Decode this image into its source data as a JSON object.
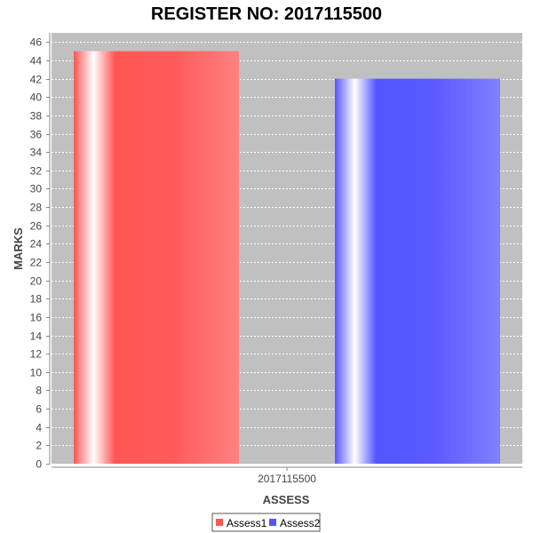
{
  "chart_data": {
    "type": "bar",
    "title": "REGISTER NO: 2017115500",
    "xlabel": "ASSESS",
    "ylabel": "MARKS",
    "categories": [
      "2017115500"
    ],
    "series": [
      {
        "name": "Assess1",
        "values": [
          45
        ],
        "color": "#ff5555"
      },
      {
        "name": "Assess2",
        "values": [
          42
        ],
        "color": "#5555ff"
      }
    ],
    "ylim": [
      0,
      47
    ],
    "ytick_step": 2,
    "grid": true,
    "legend_position": "bottom-center",
    "plot_background": "#c0c0c0",
    "gridline_color": "#ffffff"
  }
}
